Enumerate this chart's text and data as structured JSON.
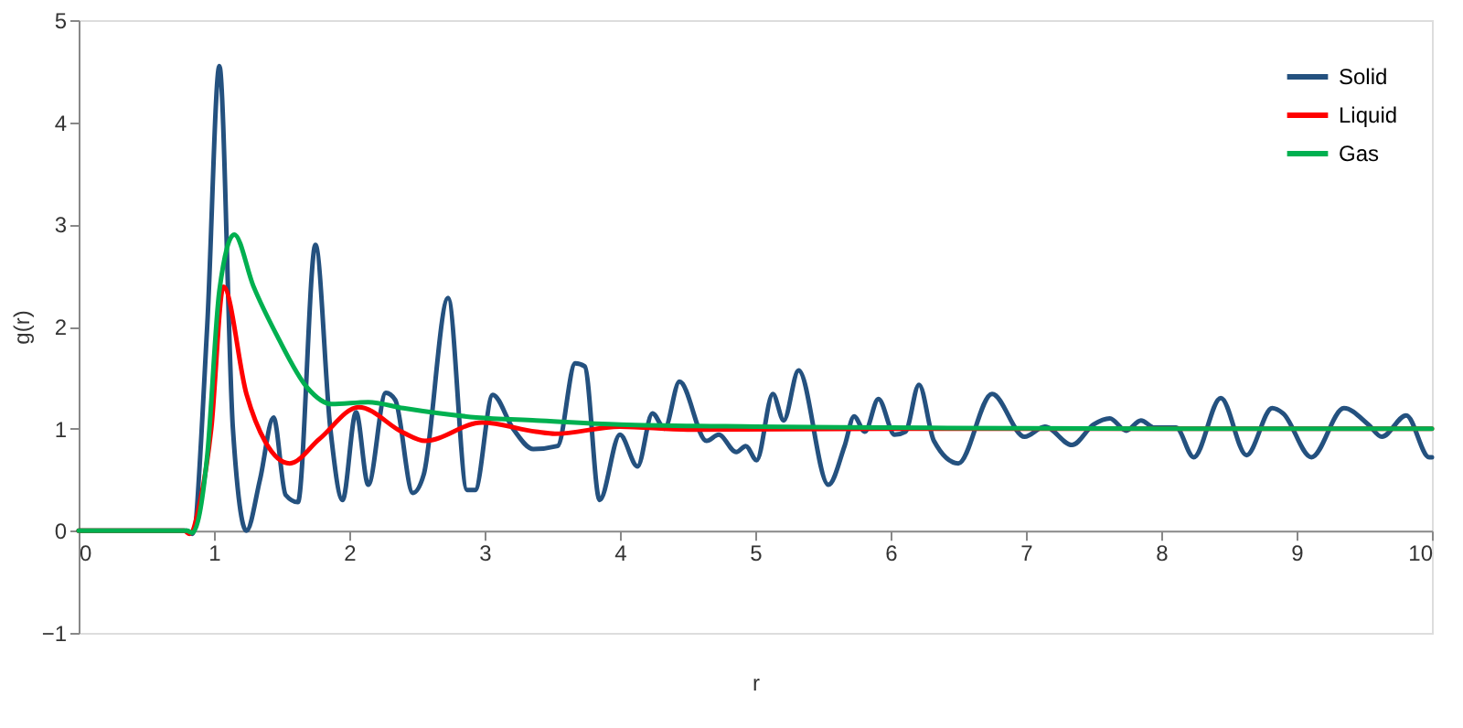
{
  "chart_data": {
    "type": "line",
    "xlabel": "r",
    "ylabel": "g(r)",
    "xlim": [
      0,
      10
    ],
    "ylim": [
      -1,
      5
    ],
    "xticks": [
      0,
      1,
      2,
      3,
      4,
      5,
      6,
      7,
      8,
      9,
      10
    ],
    "yticks": [
      -1,
      0,
      1,
      2,
      3,
      4,
      5
    ],
    "grid": false,
    "legend": "top right",
    "marker": "none",
    "line_style": "solid",
    "series": [
      {
        "name": "Solid",
        "color": "#24517f",
        "x": [
          0,
          0.8,
          0.84,
          0.95,
          1.04,
          1.14,
          1.24,
          1.34,
          1.44,
          1.53,
          1.62,
          1.75,
          1.86,
          1.95,
          2.05,
          2.14,
          2.27,
          2.34,
          2.47,
          2.55,
          2.73,
          2.87,
          2.93,
          3.06,
          3.21,
          3.36,
          3.54,
          3.67,
          3.74,
          3.85,
          4.0,
          4.13,
          4.24,
          4.33,
          4.44,
          4.64,
          4.73,
          4.86,
          4.93,
          5.01,
          5.13,
          5.21,
          5.32,
          5.54,
          5.66,
          5.73,
          5.81,
          5.91,
          6.03,
          6.11,
          6.21,
          6.32,
          6.5,
          6.75,
          6.99,
          7.14,
          7.34,
          7.5,
          7.62,
          7.74,
          7.85,
          7.95,
          8.11,
          8.24,
          8.44,
          8.63,
          8.82,
          8.9,
          9.11,
          9.35,
          9.53,
          9.63,
          9.81,
          9.98,
          10
        ],
        "values": [
          0,
          0,
          -0.03,
          2.0,
          4.55,
          1.0,
          0,
          0.5,
          1.11,
          0.35,
          0.28,
          2.8,
          1.0,
          0.3,
          1.16,
          0.45,
          1.35,
          1.28,
          0.37,
          0.55,
          2.28,
          0.4,
          0.4,
          1.33,
          1.0,
          0.8,
          0.83,
          1.64,
          1.61,
          0.3,
          0.94,
          0.63,
          1.15,
          1.0,
          1.46,
          0.88,
          0.94,
          0.77,
          0.83,
          0.69,
          1.34,
          1.08,
          1.57,
          0.45,
          0.83,
          1.12,
          0.97,
          1.29,
          0.94,
          0.97,
          1.43,
          0.88,
          0.66,
          1.34,
          0.92,
          1.02,
          0.84,
          1.04,
          1.1,
          0.98,
          1.08,
          1.01,
          1.01,
          0.72,
          1.3,
          0.74,
          1.2,
          1.15,
          0.72,
          1.2,
          1.04,
          0.92,
          1.13,
          0.72,
          0.72
        ]
      },
      {
        "name": "Liquid",
        "color": "#ff0000",
        "x": [
          0,
          0.78,
          0.82,
          0.9,
          0.98,
          1.07,
          1.24,
          1.38,
          1.56,
          1.78,
          2.07,
          2.4,
          2.56,
          2.98,
          3.38,
          3.52,
          4.0,
          4.5,
          6,
          8,
          10
        ],
        "values": [
          0,
          0,
          -0.03,
          0.3,
          1.0,
          2.39,
          1.34,
          0.87,
          0.66,
          0.9,
          1.21,
          0.96,
          0.88,
          1.06,
          0.97,
          0.95,
          1.02,
          0.99,
          1.0,
          1.0,
          1.0
        ]
      },
      {
        "name": "Gas",
        "color": "#00b050",
        "x": [
          0,
          0.8,
          0.84,
          0.95,
          1.04,
          1.15,
          1.29,
          1.47,
          1.69,
          1.87,
          2.14,
          2.4,
          2.94,
          3.38,
          4.0,
          5.0,
          6.0,
          8.0,
          10
        ],
        "values": [
          0,
          0,
          -0.02,
          0.73,
          2.35,
          2.9,
          2.4,
          1.9,
          1.4,
          1.24,
          1.26,
          1.2,
          1.11,
          1.08,
          1.04,
          1.02,
          1.01,
          1.0,
          1.0
        ]
      }
    ]
  }
}
